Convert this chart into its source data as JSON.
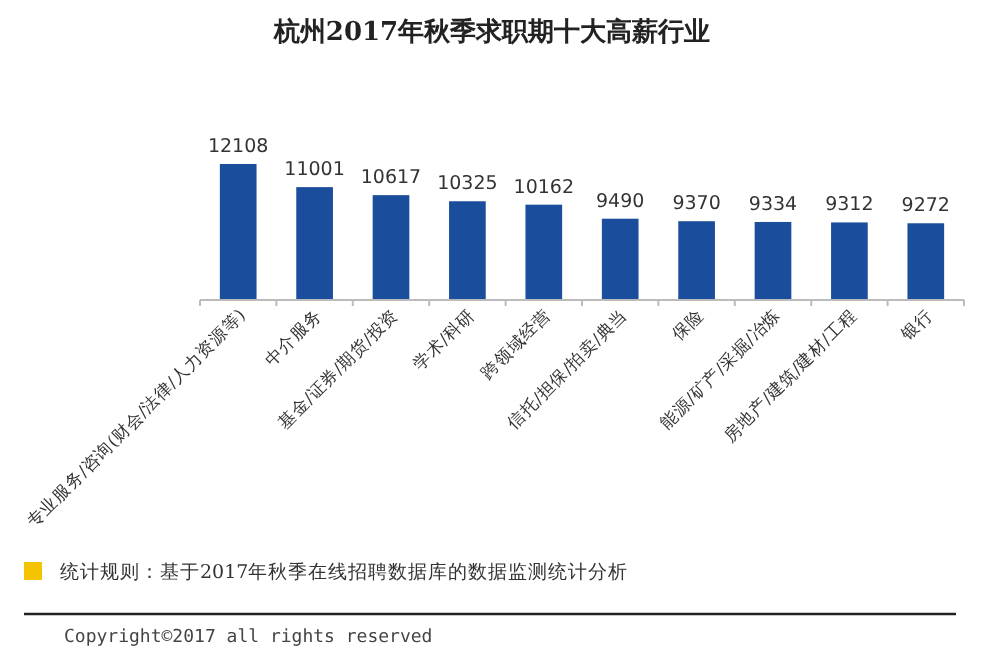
{
  "chart_data": {
    "type": "bar",
    "title": "杭州2017年秋季求职期十大高薪行业",
    "categories": [
      "专业服务/咨询(财会/法律/人力资源等)",
      "中介服务",
      "基金/证券/期货/投资",
      "学术/科研",
      "跨领域经营",
      "信托/担保/拍卖/典当",
      "保险",
      "能源/矿产/采掘/冶炼",
      "房地产/建筑/建材/工程",
      "银行"
    ],
    "values": [
      12108,
      11001,
      10617,
      10325,
      10162,
      9490,
      9370,
      9334,
      9312,
      9272
    ],
    "color": "#1a4e9c",
    "ylim": [
      5600,
      12108
    ],
    "data_labels": true,
    "annotations": [
      "统计规则：基于2017年秋季在线招聘数据库的数据监测统计分析",
      "Copyright©2017 all rights reserved"
    ]
  }
}
